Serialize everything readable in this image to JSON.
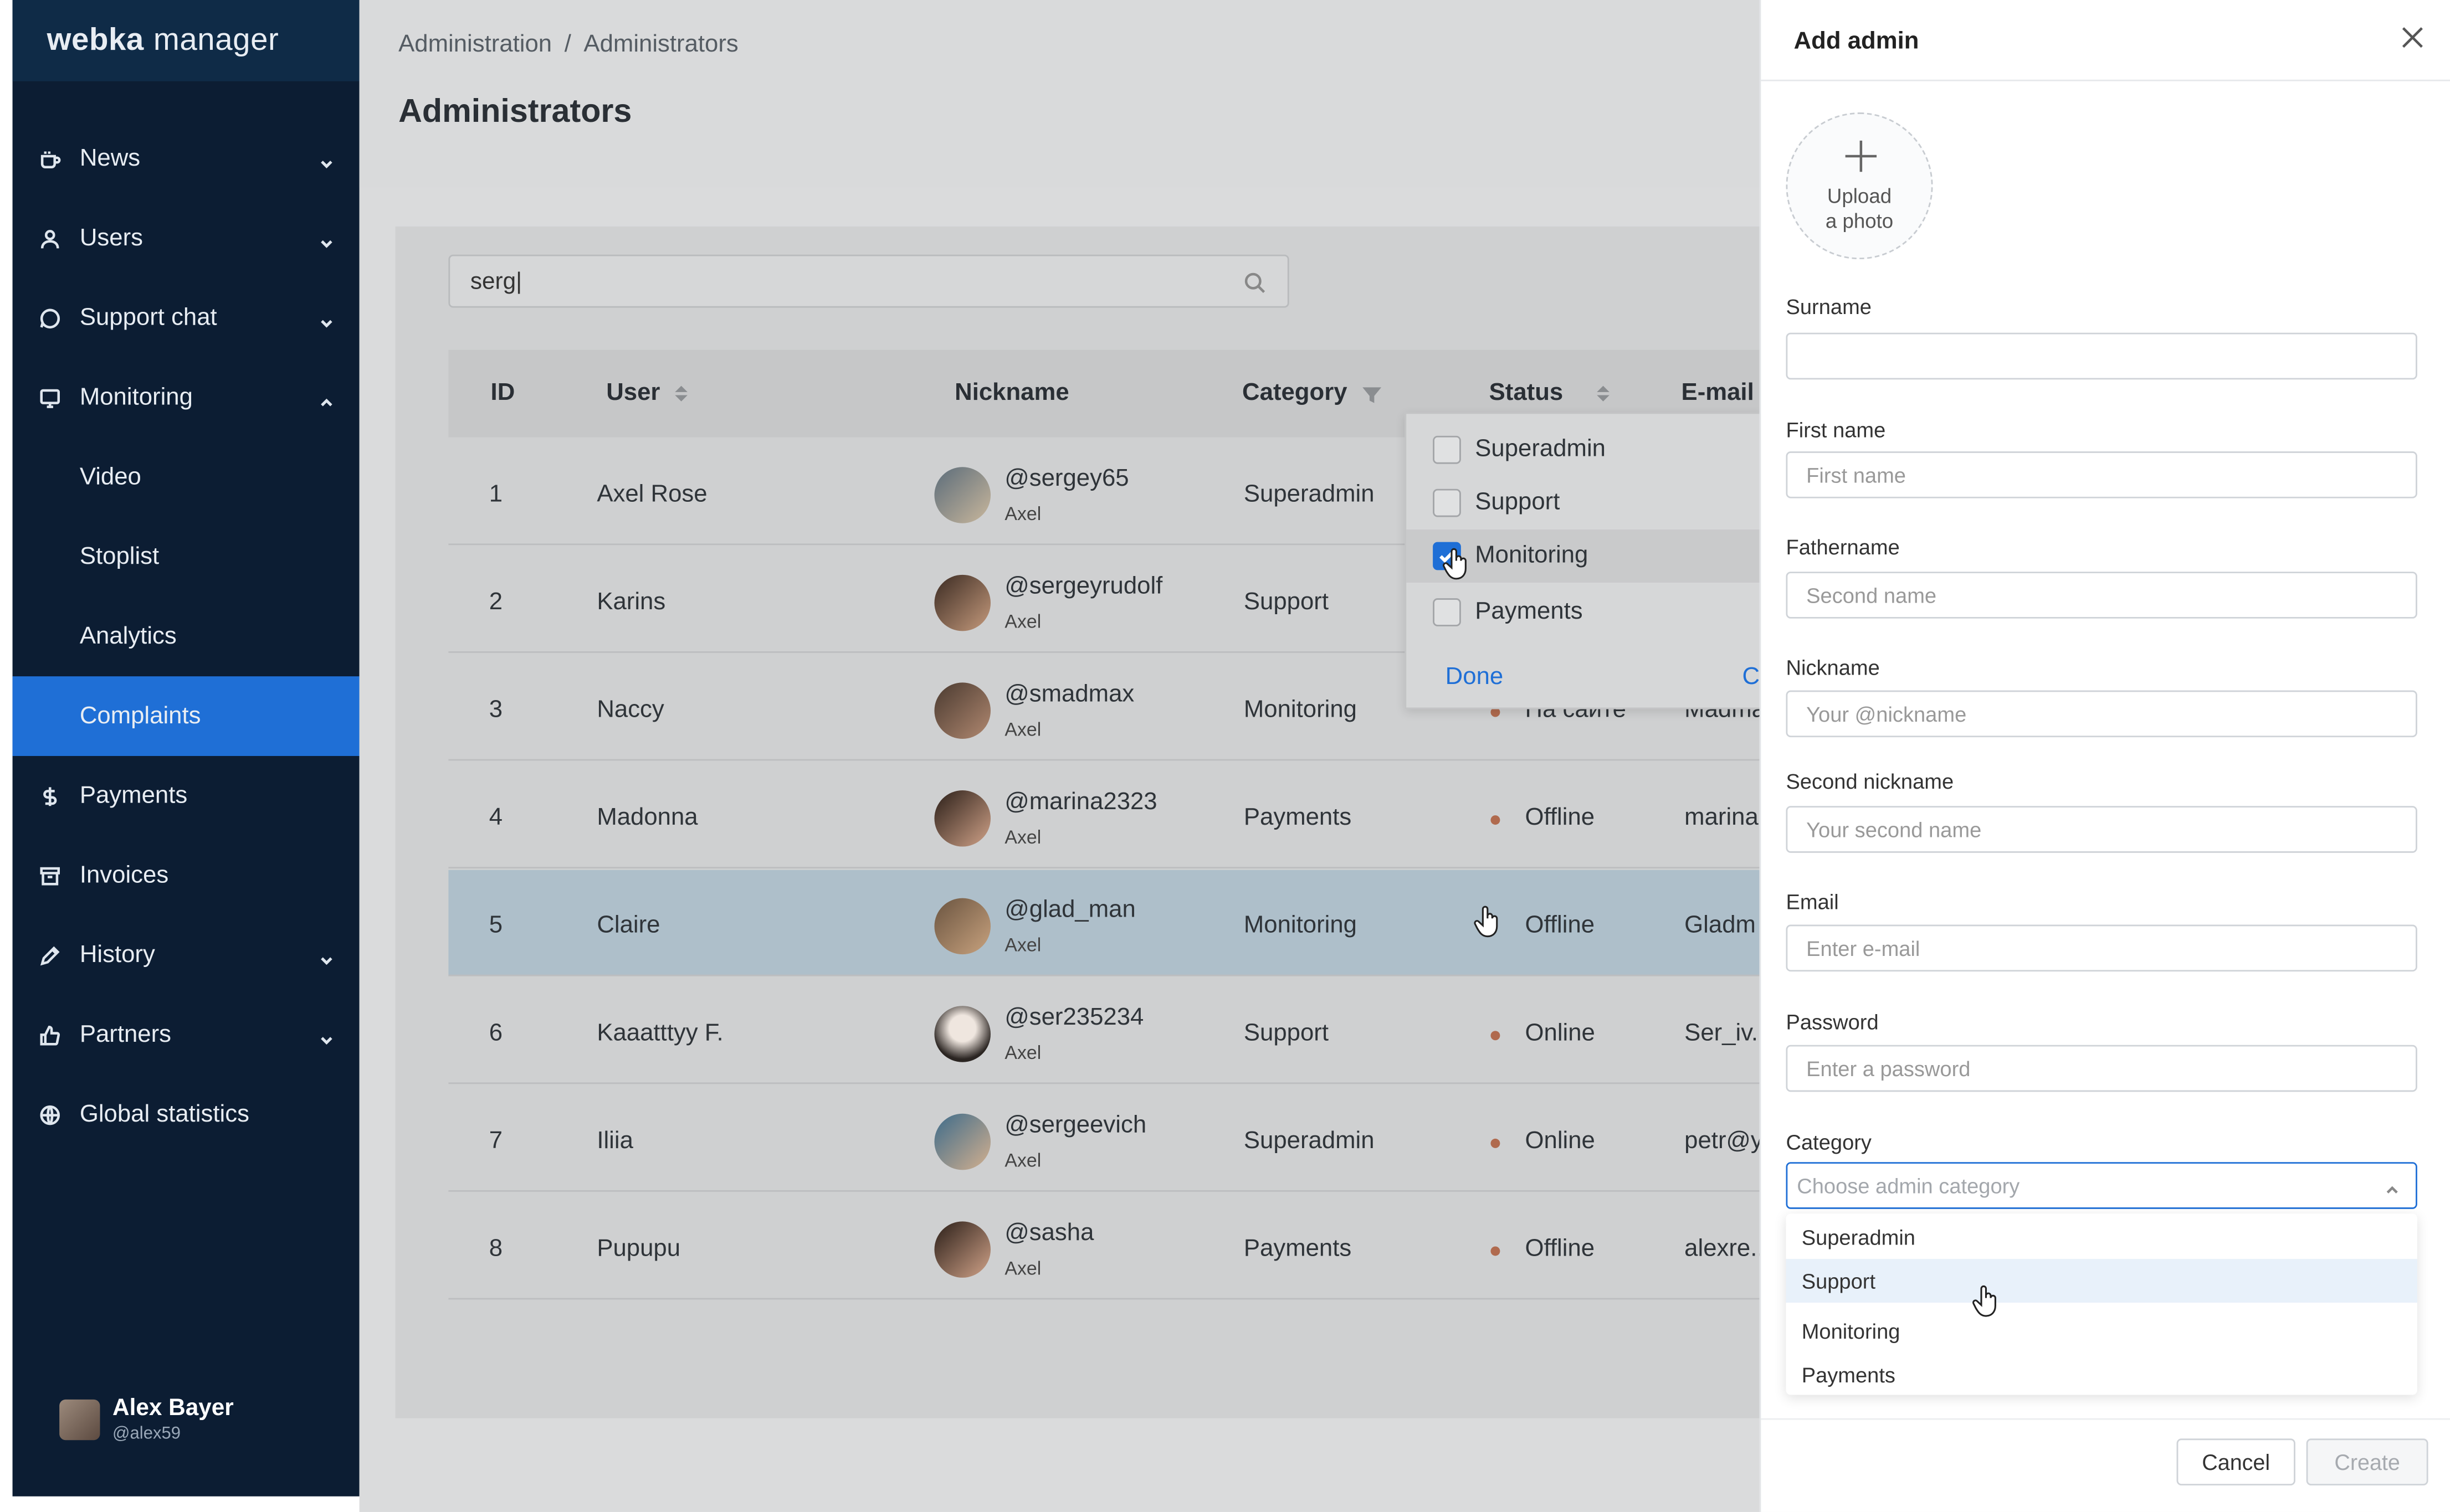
{
  "app": {
    "logo_bold": "webka",
    "logo_rest": "manager"
  },
  "sidebar": {
    "items": [
      {
        "label": "News",
        "icon": "coffee-icon",
        "chevron": "down"
      },
      {
        "label": "Users",
        "icon": "user-icon",
        "chevron": "down"
      },
      {
        "label": "Support chat",
        "icon": "chat-icon",
        "chevron": "down"
      },
      {
        "label": "Monitoring",
        "icon": "monitor-icon",
        "chevron": "up"
      },
      {
        "label": "Video",
        "sub": true
      },
      {
        "label": "Stoplist",
        "sub": true
      },
      {
        "label": "Analytics",
        "sub": true
      },
      {
        "label": "Complaints",
        "sub": true,
        "active": true
      },
      {
        "label": "Payments",
        "icon": "dollar-icon"
      },
      {
        "label": "Invoices",
        "icon": "archive-icon"
      },
      {
        "label": "History",
        "icon": "pen-icon",
        "chevron": "down"
      },
      {
        "label": "Partners",
        "icon": "thumbs-up-icon",
        "chevron": "down"
      },
      {
        "label": "Global statistics",
        "icon": "globe-icon"
      }
    ],
    "profile": {
      "name": "Alex Bayer",
      "handle": "@alex59"
    }
  },
  "breadcrumb": {
    "root": "Administration",
    "separator": "/",
    "current": "Administrators"
  },
  "page_title": "Administrators",
  "search": {
    "value": "serg|"
  },
  "table": {
    "headers": {
      "id": "ID",
      "user": "User",
      "nickname": "Nickname",
      "category": "Category",
      "status": "Status",
      "email": "E-mail"
    },
    "rows": [
      {
        "id": "1",
        "user": "Axel Rose",
        "nick": "@sergey65",
        "nsub": "Axel",
        "category": "Superadmin",
        "status": "",
        "email": ""
      },
      {
        "id": "2",
        "user": "Karins",
        "nick": "@sergeyrudolf",
        "nsub": "Axel",
        "category": "Support",
        "status": "",
        "email": ""
      },
      {
        "id": "3",
        "user": "Naccy",
        "nick": "@smadmax",
        "nsub": "Axel",
        "category": "Monitoring",
        "status": "На сайте",
        "email": "Madma"
      },
      {
        "id": "4",
        "user": "Madonna",
        "nick": "@marina2323",
        "nsub": "Axel",
        "category": "Payments",
        "status": "Offline",
        "email": "marina"
      },
      {
        "id": "5",
        "user": "Claire",
        "nick": "@glad_man",
        "nsub": "Axel",
        "category": "Monitoring",
        "status": "Offline",
        "email": "Gladm"
      },
      {
        "id": "6",
        "user": "Kaaatttyy F.",
        "nick": "@ser235234",
        "nsub": "Axel",
        "category": "Support",
        "status": "Online",
        "email": "Ser_iv.."
      },
      {
        "id": "7",
        "user": "Iliia",
        "nick": "@sergeevich",
        "nsub": "Axel",
        "category": "Superadmin",
        "status": "Online",
        "email": "petr@y"
      },
      {
        "id": "8",
        "user": "Pupupu",
        "nick": "@sasha",
        "nsub": "Axel",
        "category": "Payments",
        "status": "Offline",
        "email": "alexre..."
      }
    ]
  },
  "category_filter": {
    "options": [
      {
        "label": "Superadmin",
        "checked": false
      },
      {
        "label": "Support",
        "checked": false
      },
      {
        "label": "Monitoring",
        "checked": true
      },
      {
        "label": "Payments",
        "checked": false
      }
    ],
    "done": "Done",
    "clear": "C"
  },
  "drawer": {
    "title": "Add admin",
    "upload_line1": "Upload",
    "upload_line2": "a photo",
    "fields": [
      {
        "label": "Surname",
        "placeholder": ""
      },
      {
        "label": "First name",
        "placeholder": "First name"
      },
      {
        "label": "Fathername",
        "placeholder": "Second name"
      },
      {
        "label": "Nickname",
        "placeholder": "Your @nickname"
      },
      {
        "label": "Second nickname",
        "placeholder": "Your second name"
      },
      {
        "label": "Email",
        "placeholder": "Enter e-mail"
      },
      {
        "label": "Password",
        "placeholder": "Enter a password"
      }
    ],
    "category_label": "Category",
    "category_placeholder": "Choose admin category",
    "category_options": [
      "Superadmin",
      "Support",
      "Monitoring",
      "Payments"
    ],
    "cancel": "Cancel",
    "create": "Create"
  },
  "colors": {
    "sidebar_bg": "#0c1d33",
    "accent": "#1f6fd6",
    "status_dot": "#b06a4e"
  }
}
